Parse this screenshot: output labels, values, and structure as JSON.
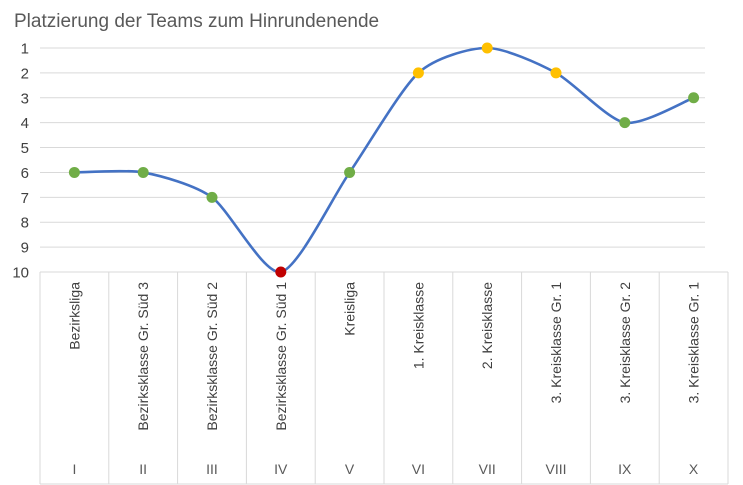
{
  "chart_data": {
    "type": "line",
    "title": "Platzierung der Teams zum Hinrundenende",
    "y_tick_labels": [
      "1",
      "2",
      "3",
      "4",
      "5",
      "6",
      "7",
      "8",
      "9",
      "10"
    ],
    "ylim": [
      1,
      10
    ],
    "y_inverted": true,
    "grid": true,
    "smooth": true,
    "line_color": "#4472c4",
    "categories": [
      "Bezirksliga",
      "Bezirksklasse Gr. Süd 3",
      "Bezirksklasse Gr. Süd 2",
      "Bezirksklasse Gr. Süd 1",
      "Kreisliga",
      "1. Kreisklasse",
      "2. Kreisklasse",
      "3. Kreisklasse Gr. 1",
      "3. Kreisklasse Gr. 2",
      "3. Kreisklasse Gr. 1"
    ],
    "roman_labels": [
      "I",
      "II",
      "III",
      "IV",
      "V",
      "VI",
      "VII",
      "VIII",
      "IX",
      "X"
    ],
    "values": [
      6,
      6,
      7,
      10,
      6,
      2,
      1,
      2,
      4,
      3
    ],
    "marker_colors": [
      "#70ad47",
      "#70ad47",
      "#70ad47",
      "#c00000",
      "#70ad47",
      "#ffc000",
      "#ffc000",
      "#ffc000",
      "#70ad47",
      "#70ad47"
    ]
  }
}
